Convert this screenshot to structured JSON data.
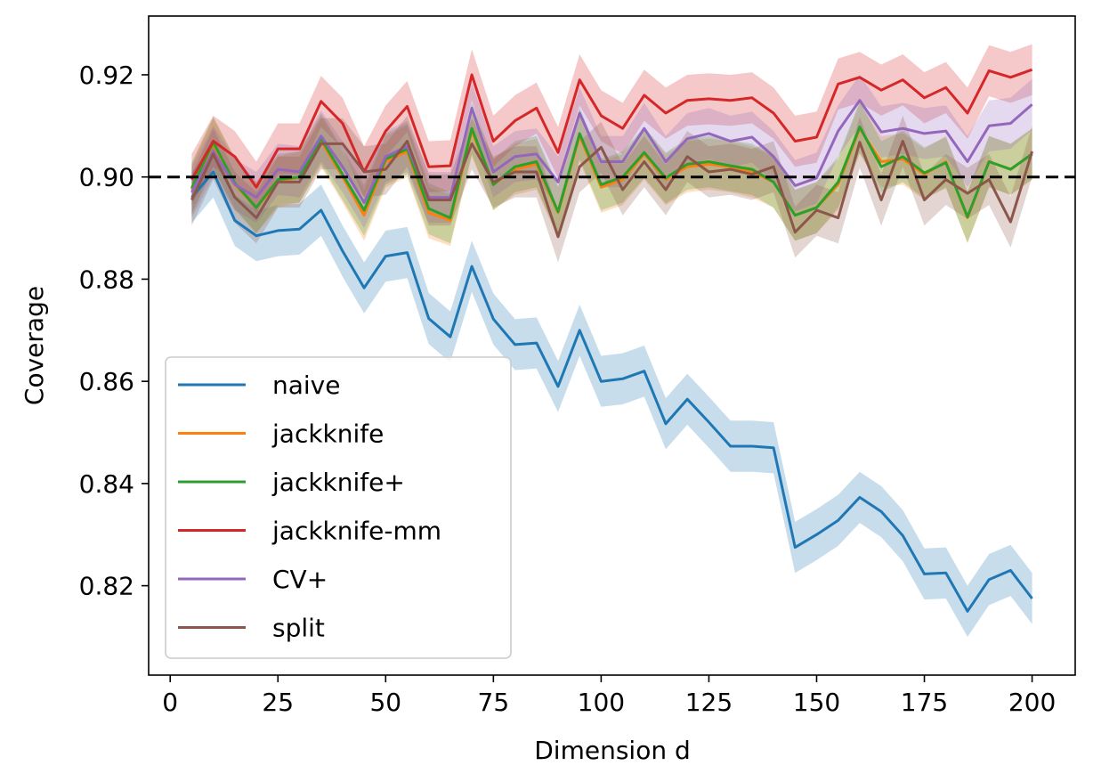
{
  "chart_data": {
    "type": "line",
    "xlabel": "Dimension d",
    "ylabel": "Coverage",
    "xlim": [
      -5,
      210
    ],
    "ylim": [
      0.8025,
      0.9315
    ],
    "xticks": [
      0,
      25,
      50,
      75,
      100,
      125,
      150,
      175,
      200
    ],
    "xtick_labels": [
      "0",
      "25",
      "50",
      "75",
      "100",
      "125",
      "150",
      "175",
      "200"
    ],
    "yticks": [
      0.82,
      0.84,
      0.86,
      0.88,
      0.9,
      0.92
    ],
    "ytick_labels": [
      "0.82",
      "0.84",
      "0.86",
      "0.88",
      "0.90",
      "0.92"
    ],
    "reference_line": {
      "y": 0.9,
      "style": "dashed",
      "color": "#000000"
    },
    "legend_position": "lower-left",
    "band_halfwidth": 0.005,
    "x": [
      5,
      10,
      15,
      20,
      25,
      30,
      35,
      40,
      45,
      50,
      55,
      60,
      65,
      70,
      75,
      80,
      85,
      90,
      95,
      100,
      105,
      110,
      115,
      120,
      125,
      130,
      135,
      140,
      145,
      150,
      155,
      160,
      165,
      170,
      175,
      180,
      185,
      190,
      195,
      200
    ],
    "series": [
      {
        "name": "naive",
        "color": "#1f77b4",
        "values": [
          0.896,
          0.901,
          0.8915,
          0.8885,
          0.8895,
          0.8898,
          0.8935,
          0.8855,
          0.8783,
          0.8845,
          0.8852,
          0.8723,
          0.8687,
          0.8825,
          0.8722,
          0.8672,
          0.8675,
          0.859,
          0.87,
          0.86,
          0.8605,
          0.862,
          0.8517,
          0.8565,
          0.852,
          0.8473,
          0.8473,
          0.847,
          0.8275,
          0.83,
          0.8328,
          0.8373,
          0.8345,
          0.8298,
          0.8223,
          0.8225,
          0.815,
          0.8212,
          0.823,
          0.8175
        ]
      },
      {
        "name": "jackknife",
        "color": "#ff7f0e",
        "values": [
          0.8975,
          0.9065,
          0.8985,
          0.894,
          0.899,
          0.9,
          0.907,
          0.9,
          0.8925,
          0.903,
          0.905,
          0.893,
          0.8915,
          0.909,
          0.8985,
          0.9015,
          0.9025,
          0.893,
          0.908,
          0.898,
          0.8995,
          0.9045,
          0.8995,
          0.902,
          0.9025,
          0.902,
          0.901,
          0.899,
          0.8925,
          0.894,
          0.8985,
          0.9095,
          0.903,
          0.9035,
          0.9005,
          0.903,
          0.892,
          0.903,
          0.9015,
          0.9045
        ]
      },
      {
        "name": "jackknife+",
        "color": "#2ca02c",
        "values": [
          0.8978,
          0.9068,
          0.8988,
          0.894,
          0.8995,
          0.9,
          0.9075,
          0.9005,
          0.8935,
          0.9035,
          0.9055,
          0.8938,
          0.892,
          0.9095,
          0.8985,
          0.902,
          0.903,
          0.8932,
          0.9085,
          0.8985,
          0.9,
          0.9048,
          0.8998,
          0.9025,
          0.903,
          0.9022,
          0.9015,
          0.899,
          0.8925,
          0.894,
          0.899,
          0.9098,
          0.902,
          0.904,
          0.9008,
          0.9028,
          0.8922,
          0.903,
          0.9015,
          0.9045
        ]
      },
      {
        "name": "jackknife-mm",
        "color": "#d62728",
        "values": [
          0.8995,
          0.907,
          0.904,
          0.898,
          0.9055,
          0.9055,
          0.9148,
          0.9105,
          0.901,
          0.909,
          0.9138,
          0.902,
          0.9022,
          0.92,
          0.907,
          0.911,
          0.9135,
          0.9048,
          0.919,
          0.912,
          0.9095,
          0.916,
          0.9125,
          0.915,
          0.9153,
          0.915,
          0.9155,
          0.9125,
          0.907,
          0.9078,
          0.9182,
          0.9195,
          0.917,
          0.919,
          0.9155,
          0.9175,
          0.9125,
          0.9208,
          0.9195,
          0.921
        ]
      },
      {
        "name": "CV+",
        "color": "#9467bd",
        "values": [
          0.897,
          0.905,
          0.8985,
          0.896,
          0.9015,
          0.901,
          0.908,
          0.902,
          0.895,
          0.904,
          0.906,
          0.896,
          0.896,
          0.9135,
          0.901,
          0.904,
          0.9045,
          0.899,
          0.9125,
          0.903,
          0.903,
          0.9095,
          0.903,
          0.9075,
          0.9085,
          0.907,
          0.9078,
          0.904,
          0.8983,
          0.8998,
          0.909,
          0.915,
          0.9088,
          0.9095,
          0.9085,
          0.909,
          0.903,
          0.91,
          0.9105,
          0.9142
        ]
      },
      {
        "name": "split",
        "color": "#8c564b",
        "values": [
          0.8955,
          0.9045,
          0.896,
          0.892,
          0.899,
          0.899,
          0.9065,
          0.9065,
          0.901,
          0.9015,
          0.907,
          0.8955,
          0.8955,
          0.9065,
          0.899,
          0.901,
          0.901,
          0.8883,
          0.902,
          0.9058,
          0.8975,
          0.903,
          0.8975,
          0.904,
          0.901,
          0.9015,
          0.9005,
          0.902,
          0.8892,
          0.8935,
          0.892,
          0.9068,
          0.8955,
          0.907,
          0.8955,
          0.8995,
          0.8968,
          0.8995,
          0.8912,
          0.905
        ]
      }
    ]
  }
}
